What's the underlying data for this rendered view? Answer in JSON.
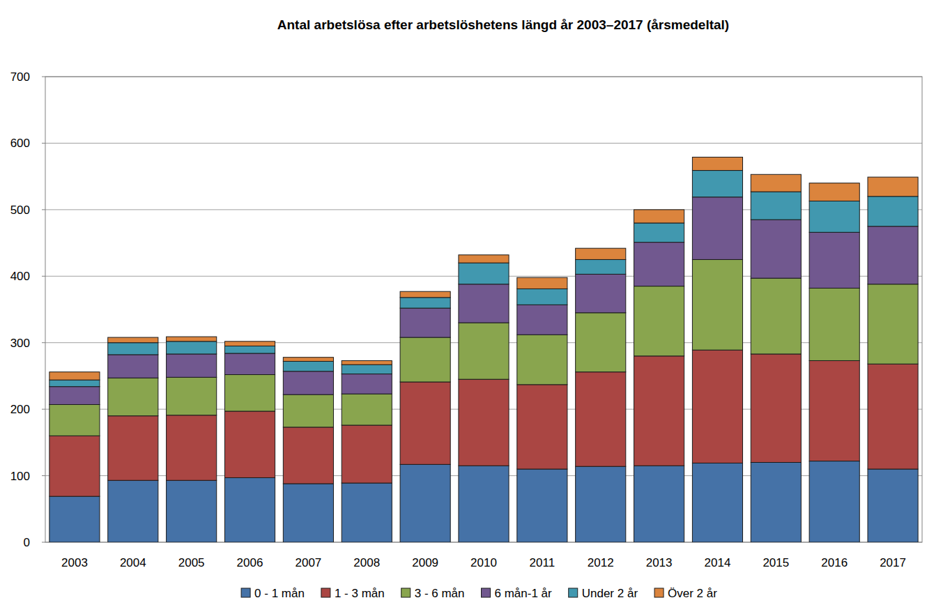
{
  "chart_data": {
    "type": "bar",
    "stacked": true,
    "grid": true,
    "legend": "bottom",
    "title": "Antal arbetslösa efter arbetslöshetens längd år 2003–2017 (årsmedeltal)",
    "categories": [
      "2003",
      "2004",
      "2005",
      "2006",
      "2007",
      "2008",
      "2009",
      "2010",
      "2011",
      "2012",
      "2013",
      "2014",
      "2015",
      "2016",
      "2017"
    ],
    "ylim": [
      0,
      700
    ],
    "yticks": [
      0,
      100,
      200,
      300,
      400,
      500,
      600,
      700
    ],
    "series": [
      {
        "name": "0 - 1 mån",
        "color": "#4572a7",
        "values": [
          69,
          93,
          93,
          97,
          88,
          89,
          117,
          115,
          110,
          114,
          115,
          119,
          120,
          122,
          110
        ]
      },
      {
        "name": "1 - 3 mån",
        "color": "#aa4643",
        "values": [
          91,
          97,
          98,
          100,
          85,
          87,
          124,
          130,
          127,
          142,
          165,
          170,
          163,
          151,
          158
        ]
      },
      {
        "name": "3 - 6 mån",
        "color": "#89a54e",
        "values": [
          47,
          57,
          57,
          55,
          49,
          47,
          67,
          85,
          75,
          89,
          105,
          136,
          114,
          109,
          120
        ]
      },
      {
        "name": "6 mån-1 år",
        "color": "#71588f",
        "values": [
          27,
          35,
          35,
          32,
          35,
          30,
          44,
          58,
          45,
          58,
          66,
          94,
          88,
          84,
          87
        ]
      },
      {
        "name": "Under 2 år",
        "color": "#4198af",
        "values": [
          10,
          18,
          19,
          11,
          15,
          14,
          16,
          32,
          24,
          22,
          29,
          40,
          42,
          47,
          45
        ]
      },
      {
        "name": "Över 2 år",
        "color": "#db843d",
        "values": [
          12,
          8,
          7,
          7,
          6,
          6,
          9,
          12,
          17,
          17,
          20,
          20,
          26,
          27,
          29
        ]
      }
    ]
  }
}
